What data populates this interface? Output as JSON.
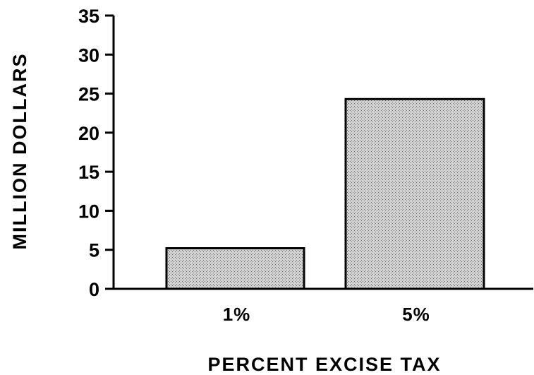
{
  "chart_data": {
    "type": "bar",
    "categories": [
      "1%",
      "5%"
    ],
    "values": [
      5.2,
      24.3
    ],
    "title": "",
    "xlabel": "PERCENT EXCISE TAX",
    "ylabel": "MILLION DOLLARS",
    "ylim": [
      0,
      35
    ],
    "yticks": [
      "0",
      "5",
      "10",
      "15",
      "20",
      "25",
      "30",
      "35"
    ],
    "grid": false,
    "legend": "none",
    "colors": {
      "bar_fill": "#c4c4c4",
      "bar_stroke": "#000000",
      "axis": "#000000"
    }
  }
}
